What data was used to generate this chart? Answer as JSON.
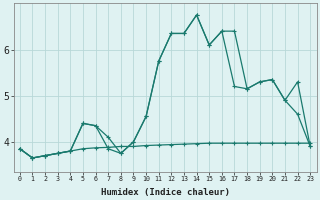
{
  "title": "",
  "xlabel": "Humidex (Indice chaleur)",
  "ylabel": "",
  "bg_color": "#dff2f2",
  "grid_color": "#b8d8d8",
  "line_color": "#1a7a6e",
  "xlim": [
    -0.5,
    23.5
  ],
  "ylim": [
    3.35,
    7.0
  ],
  "yticks": [
    4,
    5,
    6
  ],
  "xticks": [
    0,
    1,
    2,
    3,
    4,
    5,
    6,
    7,
    8,
    9,
    10,
    11,
    12,
    13,
    14,
    15,
    16,
    17,
    18,
    19,
    20,
    21,
    22,
    23
  ],
  "line1_x": [
    0,
    1,
    2,
    3,
    4,
    5,
    6,
    7,
    8,
    9,
    10,
    11,
    12,
    13,
    14,
    15,
    16,
    17,
    18,
    19,
    20,
    21,
    22,
    23
  ],
  "line1_y": [
    3.85,
    3.65,
    3.7,
    3.75,
    3.8,
    3.85,
    3.87,
    3.88,
    3.9,
    3.9,
    3.92,
    3.93,
    3.94,
    3.95,
    3.96,
    3.97,
    3.97,
    3.97,
    3.97,
    3.97,
    3.97,
    3.97,
    3.97,
    3.97
  ],
  "line2_x": [
    0,
    1,
    2,
    3,
    4,
    5,
    6,
    7,
    8,
    9,
    10,
    11,
    12,
    13,
    14,
    15,
    16,
    17,
    18,
    19,
    20,
    21,
    22,
    23
  ],
  "line2_y": [
    3.85,
    3.65,
    3.7,
    3.75,
    3.8,
    4.4,
    4.35,
    3.85,
    3.75,
    4.0,
    4.55,
    5.75,
    6.35,
    6.35,
    6.75,
    6.1,
    6.4,
    6.4,
    5.15,
    5.3,
    5.35,
    4.9,
    5.3,
    3.9
  ],
  "line3_x": [
    0,
    1,
    2,
    3,
    4,
    5,
    6,
    7,
    8,
    9,
    10,
    11,
    12,
    13,
    14,
    15,
    16,
    17,
    18,
    19,
    20,
    21,
    22,
    23
  ],
  "line3_y": [
    3.85,
    3.65,
    3.7,
    3.75,
    3.8,
    4.4,
    4.35,
    4.1,
    3.75,
    4.0,
    4.55,
    5.75,
    6.35,
    6.35,
    6.75,
    6.1,
    6.4,
    5.2,
    5.15,
    5.3,
    5.35,
    4.9,
    4.6,
    3.9
  ]
}
